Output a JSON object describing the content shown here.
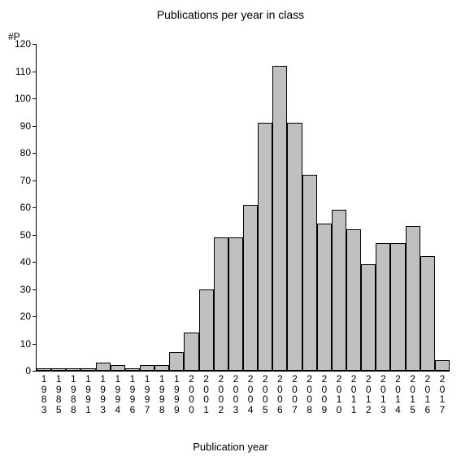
{
  "chart": {
    "type": "bar",
    "title": "Publications per year in class",
    "title_fontsize": 14,
    "ylabel_top": "#P",
    "xlabel": "Publication year",
    "label_fontsize": 13,
    "tick_fontsize": 12,
    "background_color": "#ffffff",
    "bar_color": "#c0c0c0",
    "bar_border_color": "#000000",
    "axis_color": "#000000",
    "text_color": "#000000",
    "categories": [
      "1983",
      "1985",
      "1988",
      "1991",
      "1993",
      "1994",
      "1996",
      "1997",
      "1998",
      "1999",
      "2000",
      "2001",
      "2002",
      "2003",
      "2004",
      "2005",
      "2006",
      "2007",
      "2008",
      "2009",
      "2010",
      "2011",
      "2012",
      "2013",
      "2014",
      "2015",
      "2016",
      "2017"
    ],
    "values": [
      1,
      1,
      1,
      1,
      3,
      2,
      1,
      2,
      2,
      7,
      14,
      30,
      49,
      49,
      61,
      91,
      112,
      91,
      72,
      54,
      59,
      52,
      39,
      47,
      47,
      53,
      42,
      4
    ],
    "ylim": [
      0,
      120
    ],
    "ytick_step": 10,
    "bar_width": 1.0
  }
}
